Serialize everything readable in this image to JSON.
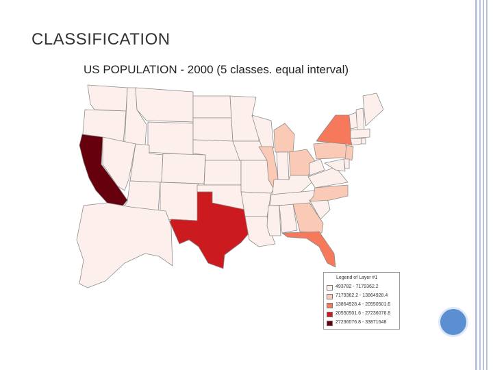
{
  "slide": {
    "title": "CLASSIFICATION",
    "accent_color": "#5b8fd1",
    "rail_color": "#b8c4dc"
  },
  "map": {
    "title": "US POPULATION - 2000 (5 classes. equal interval)",
    "border_color": "#8c8c8c",
    "legend": {
      "title": "Legend of Layer #1",
      "classes": [
        {
          "label": "493782 - 7179362.2",
          "color": "#fdf0ec"
        },
        {
          "label": "7179362.2 - 13864928.4",
          "color": "#fbcab6"
        },
        {
          "label": "13864928.4 - 20550501.6",
          "color": "#f5795a"
        },
        {
          "label": "20550501.6 - 27236076.8",
          "color": "#cb1b1e"
        },
        {
          "label": "27236076.8 - 33871648",
          "color": "#66000d"
        }
      ]
    },
    "states": [
      {
        "name": "WA",
        "class": 0
      },
      {
        "name": "OR",
        "class": 0
      },
      {
        "name": "CA",
        "class": 4
      },
      {
        "name": "ID",
        "class": 0
      },
      {
        "name": "NV",
        "class": 0
      },
      {
        "name": "MT",
        "class": 0
      },
      {
        "name": "WY",
        "class": 0
      },
      {
        "name": "UT",
        "class": 0
      },
      {
        "name": "AZ",
        "class": 0
      },
      {
        "name": "CO",
        "class": 0
      },
      {
        "name": "NM",
        "class": 0
      },
      {
        "name": "ND",
        "class": 0
      },
      {
        "name": "SD",
        "class": 0
      },
      {
        "name": "NE",
        "class": 0
      },
      {
        "name": "KS",
        "class": 0
      },
      {
        "name": "OK",
        "class": 0
      },
      {
        "name": "TX",
        "class": 3
      },
      {
        "name": "MN",
        "class": 0
      },
      {
        "name": "IA",
        "class": 0
      },
      {
        "name": "MO",
        "class": 0
      },
      {
        "name": "AR",
        "class": 0
      },
      {
        "name": "LA",
        "class": 0
      },
      {
        "name": "WI",
        "class": 0
      },
      {
        "name": "IL",
        "class": 1
      },
      {
        "name": "MI",
        "class": 1
      },
      {
        "name": "IN",
        "class": 0
      },
      {
        "name": "OH",
        "class": 1
      },
      {
        "name": "KY",
        "class": 0
      },
      {
        "name": "TN",
        "class": 0
      },
      {
        "name": "MS",
        "class": 0
      },
      {
        "name": "AL",
        "class": 0
      },
      {
        "name": "GA",
        "class": 1
      },
      {
        "name": "FL",
        "class": 2
      },
      {
        "name": "SC",
        "class": 0
      },
      {
        "name": "NC",
        "class": 1
      },
      {
        "name": "VA",
        "class": 0
      },
      {
        "name": "WV",
        "class": 0
      },
      {
        "name": "PA",
        "class": 1
      },
      {
        "name": "NY",
        "class": 2
      },
      {
        "name": "NJ",
        "class": 1
      },
      {
        "name": "VT",
        "class": 0
      },
      {
        "name": "NH",
        "class": 0
      },
      {
        "name": "ME",
        "class": 0
      },
      {
        "name": "MA",
        "class": 0
      },
      {
        "name": "CT",
        "class": 0
      },
      {
        "name": "RI",
        "class": 0
      },
      {
        "name": "DE",
        "class": 0
      },
      {
        "name": "MD",
        "class": 0
      },
      {
        "name": "AK",
        "class": 0
      }
    ]
  }
}
